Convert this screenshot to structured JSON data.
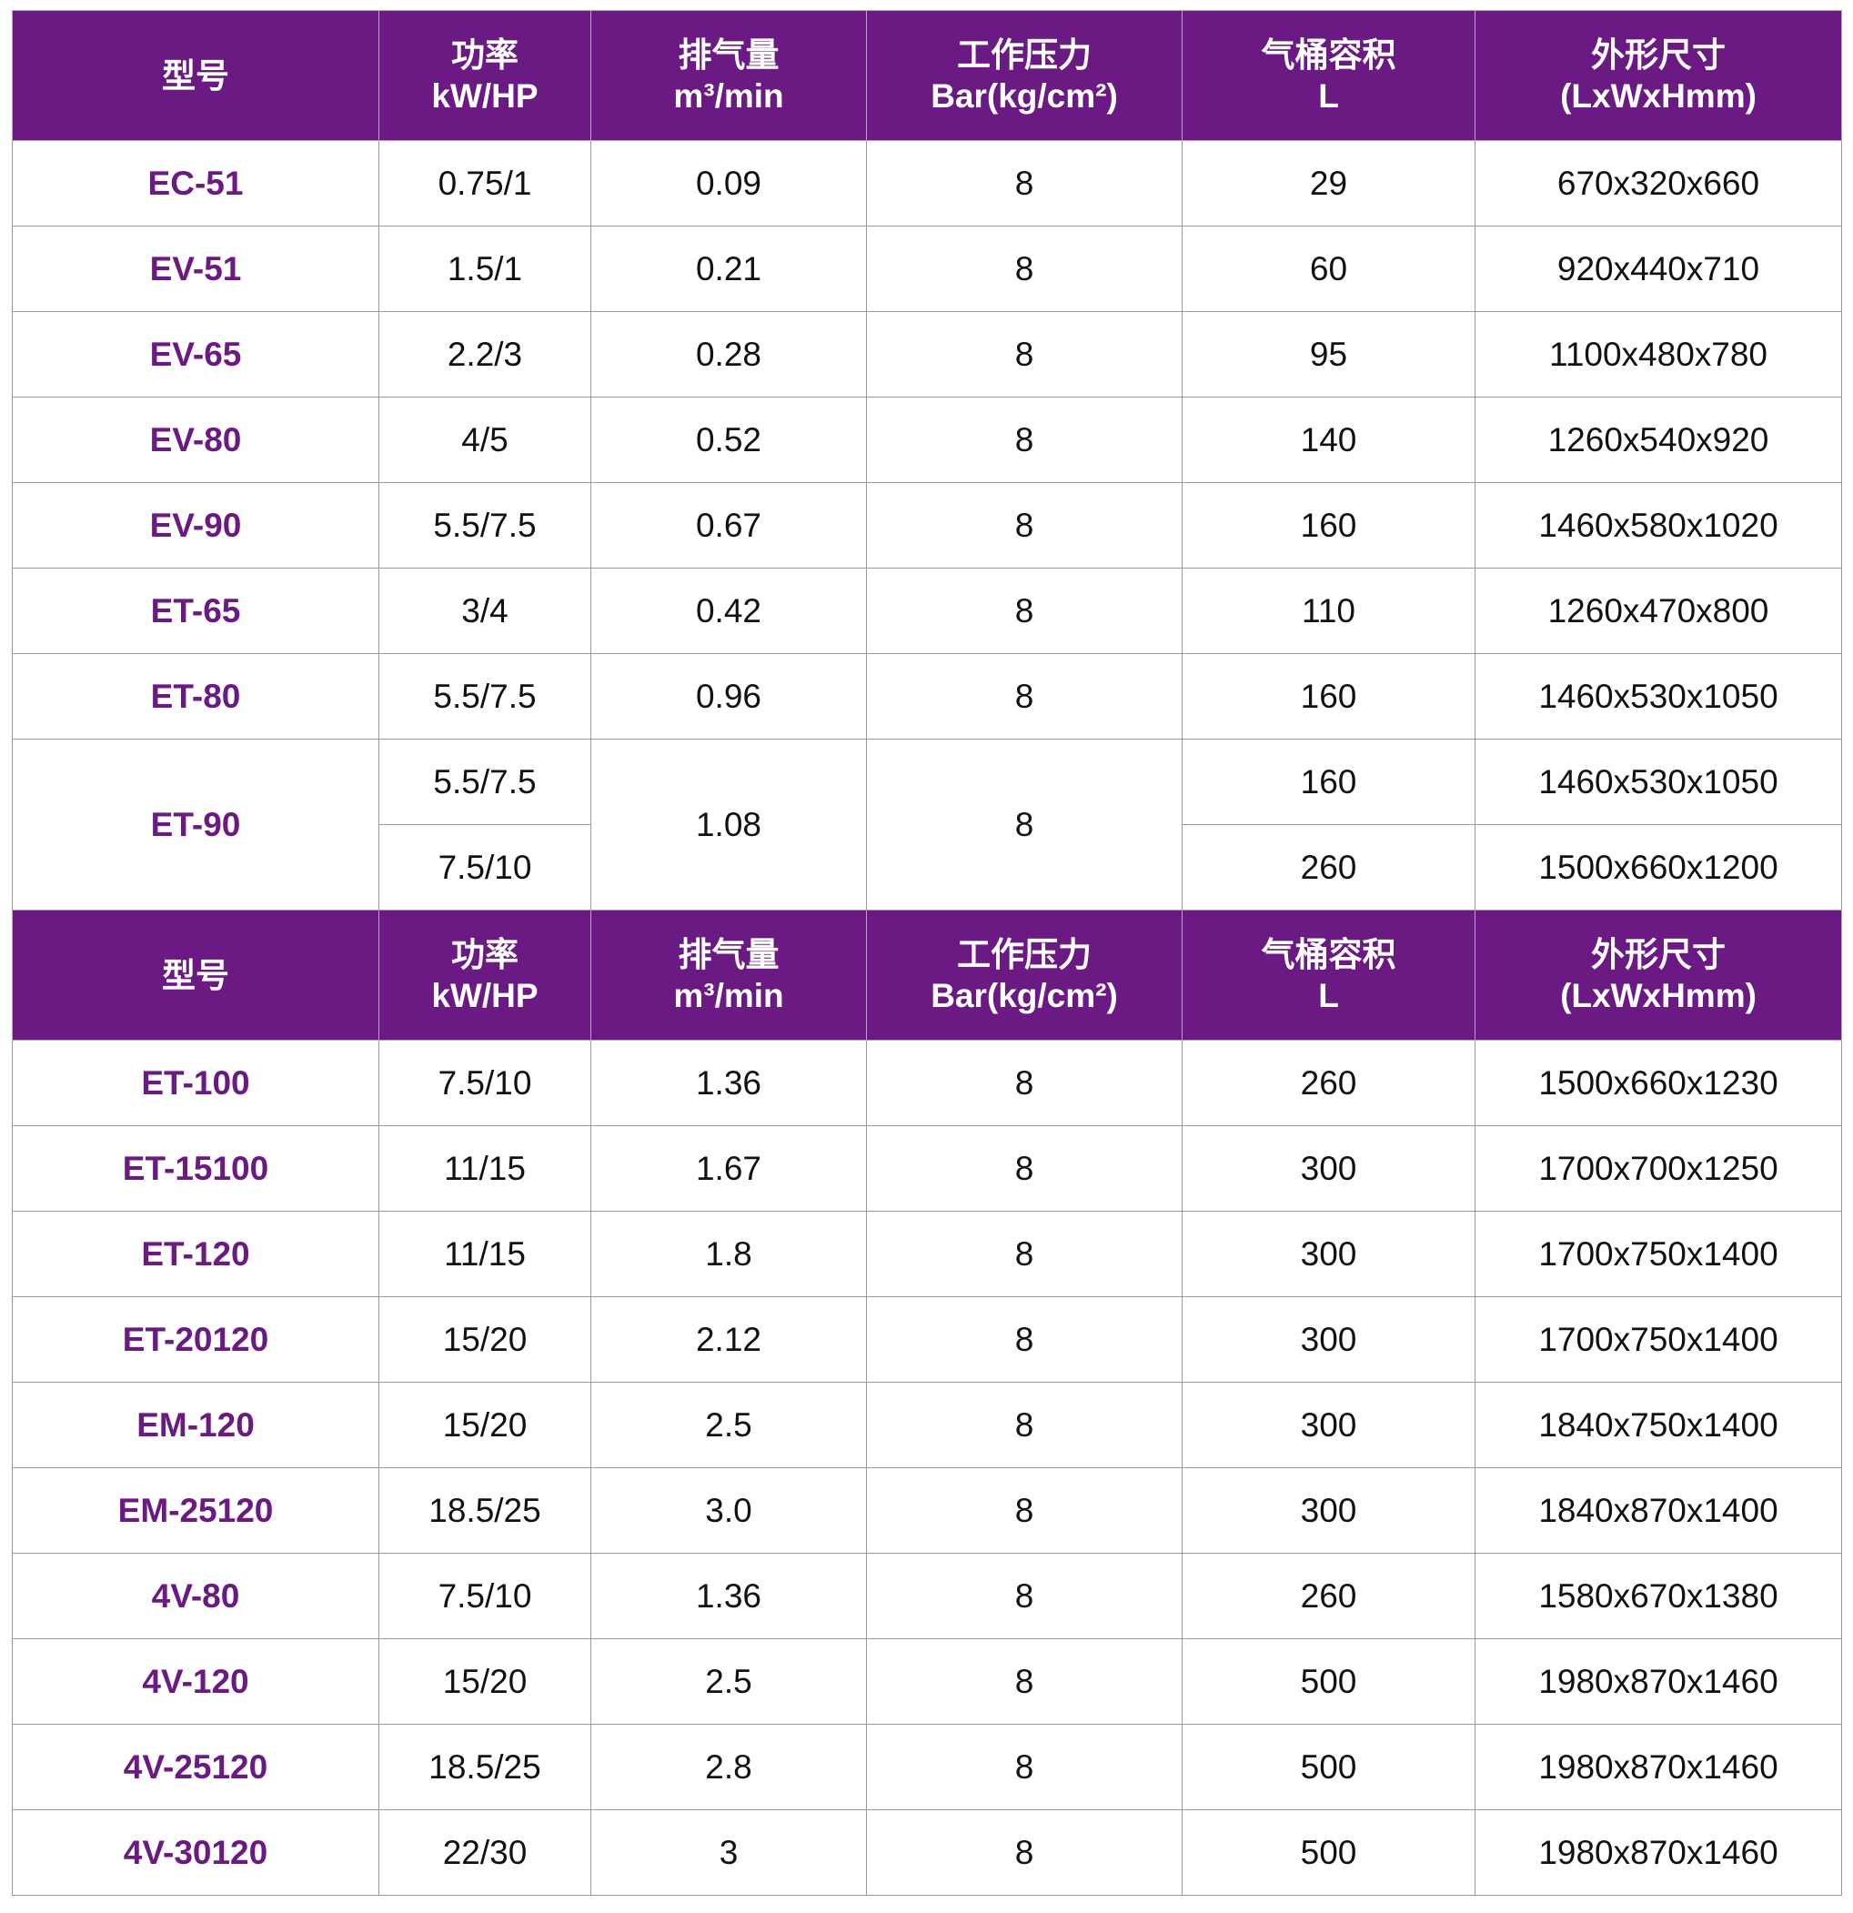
{
  "colors": {
    "header_bg": "#6b1a84",
    "model_text": "#6b1a84"
  },
  "headers": [
    [
      "型号"
    ],
    [
      "功率",
      "kW/HP"
    ],
    [
      "排气量",
      "m³/min"
    ],
    [
      "工作压力",
      "Bar(kg/cm²)"
    ],
    [
      "气桶容积",
      "L"
    ],
    [
      "外形尺寸",
      "(LxWxHmm)"
    ]
  ],
  "sections": [
    {
      "rows": [
        {
          "model": "EC-51",
          "power": [
            "0.75/1"
          ],
          "flow": "0.09",
          "pressure": "8",
          "tank": [
            "29"
          ],
          "size": [
            "670x320x660"
          ]
        },
        {
          "model": "EV-51",
          "power": [
            "1.5/1"
          ],
          "flow": "0.21",
          "pressure": "8",
          "tank": [
            "60"
          ],
          "size": [
            "920x440x710"
          ]
        },
        {
          "model": "EV-65",
          "power": [
            "2.2/3"
          ],
          "flow": "0.28",
          "pressure": "8",
          "tank": [
            "95"
          ],
          "size": [
            "1100x480x780"
          ]
        },
        {
          "model": "EV-80",
          "power": [
            "4/5"
          ],
          "flow": "0.52",
          "pressure": "8",
          "tank": [
            "140"
          ],
          "size": [
            "1260x540x920"
          ]
        },
        {
          "model": "EV-90",
          "power": [
            "5.5/7.5"
          ],
          "flow": "0.67",
          "pressure": "8",
          "tank": [
            "160"
          ],
          "size": [
            "1460x580x1020"
          ]
        },
        {
          "model": "ET-65",
          "power": [
            "3/4"
          ],
          "flow": "0.42",
          "pressure": "8",
          "tank": [
            "110"
          ],
          "size": [
            "1260x470x800"
          ]
        },
        {
          "model": "ET-80",
          "power": [
            "5.5/7.5"
          ],
          "flow": "0.96",
          "pressure": "8",
          "tank": [
            "160"
          ],
          "size": [
            "1460x530x1050"
          ]
        },
        {
          "model": "ET-90",
          "power": [
            "5.5/7.5",
            "7.5/10"
          ],
          "flow": "1.08",
          "pressure": "8",
          "tank": [
            "160",
            "260"
          ],
          "size": [
            "1460x530x1050",
            "1500x660x1200"
          ]
        }
      ]
    },
    {
      "rows": [
        {
          "model": "ET-100",
          "power": [
            "7.5/10"
          ],
          "flow": "1.36",
          "pressure": "8",
          "tank": [
            "260"
          ],
          "size": [
            "1500x660x1230"
          ]
        },
        {
          "model": "ET-15100",
          "power": [
            "11/15"
          ],
          "flow": "1.67",
          "pressure": "8",
          "tank": [
            "300"
          ],
          "size": [
            "1700x700x1250"
          ]
        },
        {
          "model": "ET-120",
          "power": [
            "11/15"
          ],
          "flow": "1.8",
          "pressure": "8",
          "tank": [
            "300"
          ],
          "size": [
            "1700x750x1400"
          ]
        },
        {
          "model": "ET-20120",
          "power": [
            "15/20"
          ],
          "flow": "2.12",
          "pressure": "8",
          "tank": [
            "300"
          ],
          "size": [
            "1700x750x1400"
          ]
        },
        {
          "model": "EM-120",
          "power": [
            "15/20"
          ],
          "flow": "2.5",
          "pressure": "8",
          "tank": [
            "300"
          ],
          "size": [
            "1840x750x1400"
          ]
        },
        {
          "model": "EM-25120",
          "power": [
            "18.5/25"
          ],
          "flow": "3.0",
          "pressure": "8",
          "tank": [
            "300"
          ],
          "size": [
            "1840x870x1400"
          ]
        },
        {
          "model": "4V-80",
          "power": [
            "7.5/10"
          ],
          "flow": "1.36",
          "pressure": "8",
          "tank": [
            "260"
          ],
          "size": [
            "1580x670x1380"
          ]
        },
        {
          "model": "4V-120",
          "power": [
            "15/20"
          ],
          "flow": "2.5",
          "pressure": "8",
          "tank": [
            "500"
          ],
          "size": [
            "1980x870x1460"
          ]
        },
        {
          "model": "4V-25120",
          "power": [
            "18.5/25"
          ],
          "flow": "2.8",
          "pressure": "8",
          "tank": [
            "500"
          ],
          "size": [
            "1980x870x1460"
          ]
        },
        {
          "model": "4V-30120",
          "power": [
            "22/30"
          ],
          "flow": "3",
          "pressure": "8",
          "tank": [
            "500"
          ],
          "size": [
            "1980x870x1460"
          ]
        }
      ]
    }
  ]
}
